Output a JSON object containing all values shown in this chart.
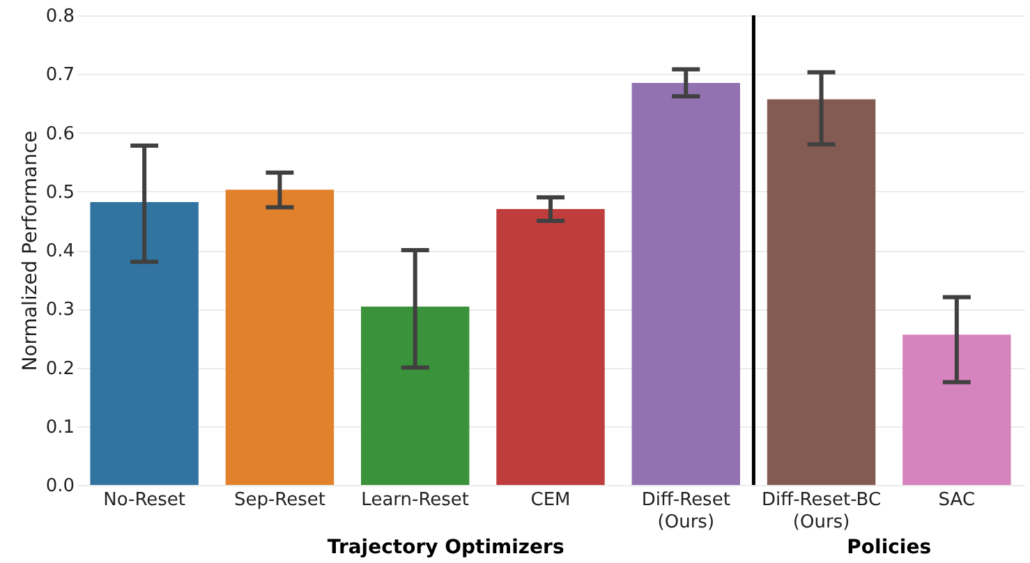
{
  "chart_data": {
    "type": "bar",
    "ylabel": "Normalized Performance",
    "categories": [
      "No-Reset",
      "Sep-Reset",
      "Learn-Reset",
      "CEM",
      "Diff-Reset\n(Ours)",
      "Diff-Reset-BC\n(Ours)",
      "SAC"
    ],
    "values": [
      0.482,
      0.503,
      0.304,
      0.47,
      0.685,
      0.657,
      0.256
    ],
    "colors": [
      "#3274a1",
      "#e1812c",
      "#3a923a",
      "#c03d3e",
      "#9372b2",
      "#845b53",
      "#d684bd"
    ],
    "errors": [
      [
        0.38,
        0.578
      ],
      [
        0.473,
        0.532
      ],
      [
        0.2,
        0.4
      ],
      [
        0.45,
        0.49
      ],
      [
        0.662,
        0.708
      ],
      [
        0.58,
        0.703
      ],
      [
        0.175,
        0.32
      ]
    ],
    "ylim": [
      0,
      0.8
    ],
    "yticks": [
      {
        "value": 0,
        "label": "0.0"
      },
      0.1,
      0.2,
      0.3,
      0.4,
      0.5,
      0.6,
      0.7,
      0.8
    ],
    "grid": "y",
    "ref_lines": [
      {
        "axis": "x",
        "value": "Diff-Reset-BC\n(Ours)",
        "color": "#000000"
      }
    ],
    "annotations": [
      "Trajectory Optimizers",
      "Policies"
    ]
  }
}
